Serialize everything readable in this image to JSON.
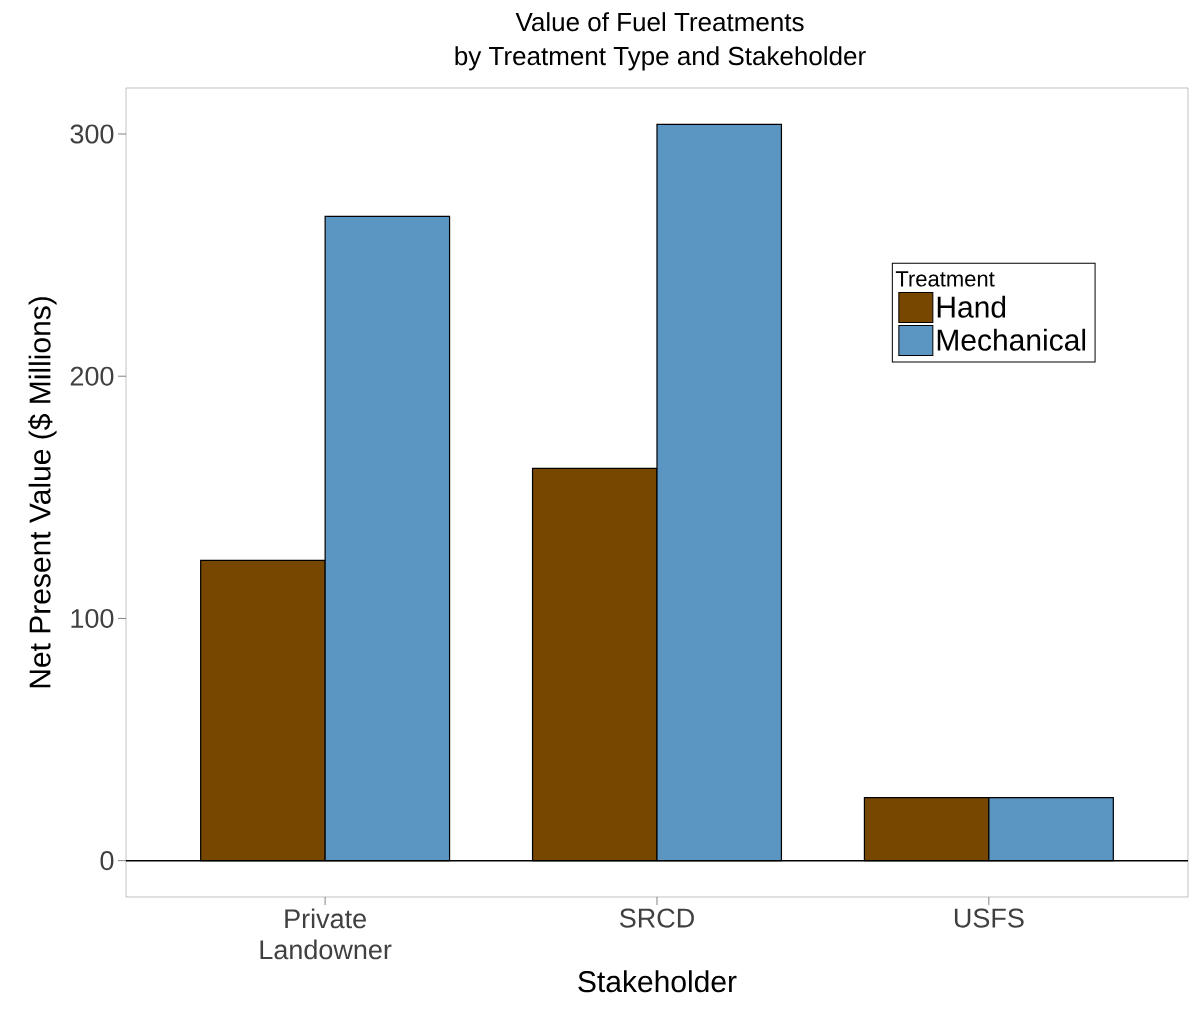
{
  "chart_data": {
    "type": "bar",
    "title": "Value of Fuel Treatments",
    "subtitle": "by Treatment Type and Stakeholder",
    "xlabel": "Stakeholder",
    "ylabel": "Net Present Value ($ Millions)",
    "legend_title": "Treatment",
    "categories": [
      "Private Landowner",
      "SRCD",
      "USFS"
    ],
    "series": [
      {
        "name": "Hand",
        "color": "#774700",
        "values": [
          124,
          162,
          26
        ]
      },
      {
        "name": "Mechanical",
        "color": "#5b96c2",
        "values": [
          266,
          304,
          26
        ]
      }
    ],
    "ylim": [
      -15,
      319
    ],
    "yticks": [
      0,
      100,
      200,
      300
    ],
    "grid": false,
    "legend": "top right",
    "ref_lines": [
      {
        "axis": "y",
        "value": 0,
        "color": "#000000"
      }
    ]
  }
}
